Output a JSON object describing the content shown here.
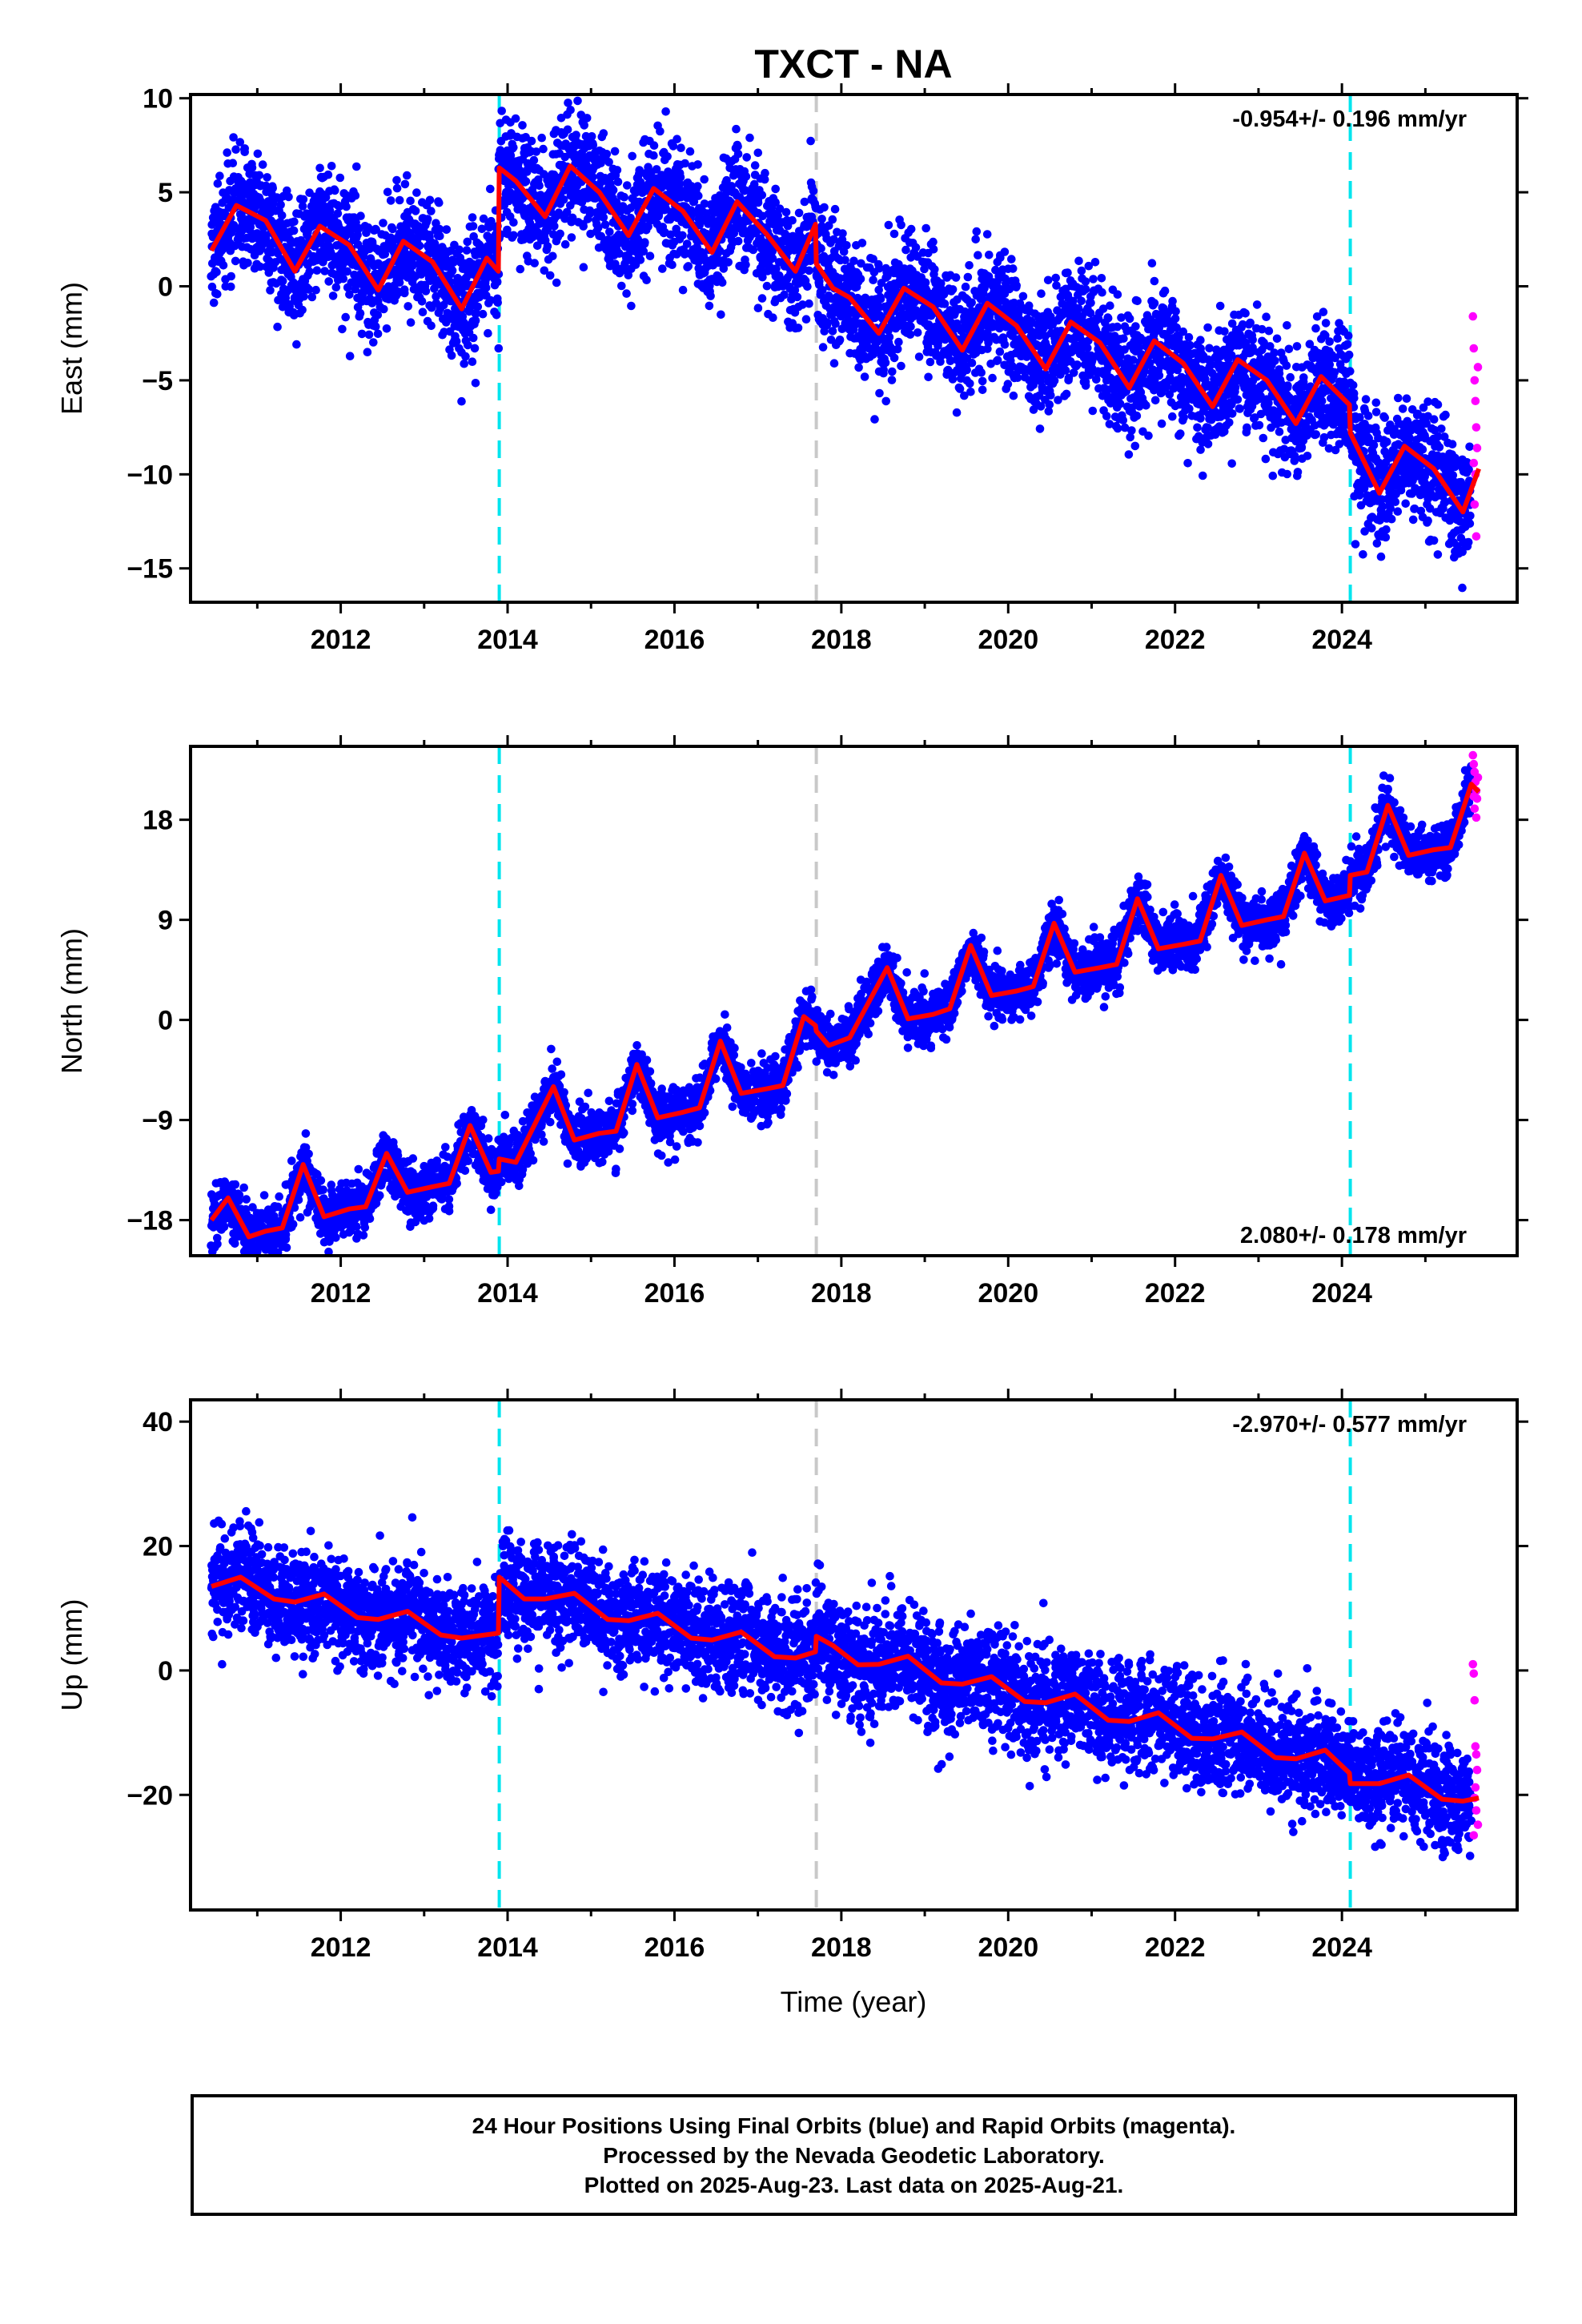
{
  "chart_data": {
    "type": "scatter",
    "title": "TXCT - NA",
    "xlabel": "Time (year)",
    "xlim": [
      2010.2,
      2026.1
    ],
    "x_ticks": [
      2012,
      2014,
      2016,
      2018,
      2020,
      2022,
      2024
    ],
    "data_range": [
      2010.45,
      2025.64
    ],
    "rapid_start": 2025.55,
    "offset_lines": [
      {
        "x": 2013.9,
        "color": "#00e5ee",
        "style": "dashed"
      },
      {
        "x": 2017.7,
        "color": "#c8c8c8",
        "style": "dashed"
      },
      {
        "x": 2024.1,
        "color": "#00e5ee",
        "style": "dashed"
      }
    ],
    "colors": {
      "final": "#0000ff",
      "rapid": "#ff00ff",
      "model": "#ff0000"
    },
    "panels": [
      {
        "name": "East",
        "ylabel": "East (mm)",
        "ylim": [
          -16.8,
          10.2
        ],
        "y_ticks": [
          10,
          5,
          0,
          -5,
          -10,
          -15
        ],
        "rate_label": "-0.954+/- 0.196 mm/yr",
        "rate_position": "top-right",
        "scatter_sd": 1.6,
        "model_points": [
          [
            2010.45,
            1.9
          ],
          [
            2010.75,
            4.3
          ],
          [
            2011.1,
            3.5
          ],
          [
            2011.45,
            0.8
          ],
          [
            2011.75,
            3.2
          ],
          [
            2012.1,
            2.2
          ],
          [
            2012.45,
            -0.2
          ],
          [
            2012.75,
            2.4
          ],
          [
            2013.1,
            1.3
          ],
          [
            2013.45,
            -1.2
          ],
          [
            2013.75,
            1.5
          ],
          [
            2013.89,
            0.8
          ],
          [
            2013.9,
            6.3
          ],
          [
            2014.1,
            5.6
          ],
          [
            2014.45,
            3.7
          ],
          [
            2014.75,
            6.4
          ],
          [
            2015.1,
            5.0
          ],
          [
            2015.45,
            2.7
          ],
          [
            2015.75,
            5.2
          ],
          [
            2016.1,
            4.0
          ],
          [
            2016.45,
            1.8
          ],
          [
            2016.75,
            4.5
          ],
          [
            2017.1,
            2.8
          ],
          [
            2017.45,
            0.8
          ],
          [
            2017.69,
            3.3
          ],
          [
            2017.7,
            1.2
          ],
          [
            2017.9,
            -0.1
          ],
          [
            2018.1,
            -0.6
          ],
          [
            2018.45,
            -2.5
          ],
          [
            2018.75,
            -0.1
          ],
          [
            2019.1,
            -1.1
          ],
          [
            2019.45,
            -3.4
          ],
          [
            2019.75,
            -0.9
          ],
          [
            2020.1,
            -2.1
          ],
          [
            2020.45,
            -4.4
          ],
          [
            2020.75,
            -1.9
          ],
          [
            2021.1,
            -3.0
          ],
          [
            2021.45,
            -5.4
          ],
          [
            2021.75,
            -2.9
          ],
          [
            2022.1,
            -4.1
          ],
          [
            2022.45,
            -6.4
          ],
          [
            2022.75,
            -3.9
          ],
          [
            2023.1,
            -5.0
          ],
          [
            2023.45,
            -7.3
          ],
          [
            2023.75,
            -4.8
          ],
          [
            2024.09,
            -6.3
          ],
          [
            2024.1,
            -7.8
          ],
          [
            2024.45,
            -11.0
          ],
          [
            2024.75,
            -8.5
          ],
          [
            2025.1,
            -9.7
          ],
          [
            2025.45,
            -12.0
          ],
          [
            2025.64,
            -9.7
          ]
        ],
        "rapid_points": [
          [
            2025.57,
            -1.6
          ],
          [
            2025.58,
            -3.3
          ],
          [
            2025.59,
            -5.0
          ],
          [
            2025.6,
            -6.1
          ],
          [
            2025.61,
            -7.5
          ],
          [
            2025.62,
            -8.6
          ],
          [
            2025.6,
            -10.0
          ],
          [
            2025.59,
            -11.6
          ],
          [
            2025.61,
            -13.3
          ],
          [
            2025.63,
            -4.3
          ],
          [
            2025.58,
            -9.4
          ]
        ]
      },
      {
        "name": "North",
        "ylabel": "North (mm)",
        "ylim": [
          -21.2,
          24.6
        ],
        "y_ticks": [
          18,
          9,
          0,
          -9,
          -18
        ],
        "rate_label": "2.080+/- 0.178 mm/yr",
        "rate_position": "bottom-right",
        "scatter_sd": 1.2,
        "model_points": [
          [
            2010.45,
            -18.0
          ],
          [
            2010.65,
            -16.0
          ],
          [
            2010.9,
            -19.5
          ],
          [
            2011.1,
            -19.0
          ],
          [
            2011.3,
            -18.7
          ],
          [
            2011.55,
            -13.0
          ],
          [
            2011.8,
            -17.7
          ],
          [
            2012.1,
            -17.0
          ],
          [
            2012.3,
            -16.8
          ],
          [
            2012.55,
            -12.0
          ],
          [
            2012.8,
            -15.5
          ],
          [
            2013.1,
            -15.0
          ],
          [
            2013.3,
            -14.7
          ],
          [
            2013.55,
            -9.5
          ],
          [
            2013.8,
            -13.7
          ],
          [
            2013.89,
            -13.6
          ],
          [
            2013.9,
            -12.5
          ],
          [
            2014.1,
            -12.8
          ],
          [
            2014.55,
            -6.0
          ],
          [
            2014.8,
            -10.8
          ],
          [
            2015.1,
            -10.2
          ],
          [
            2015.3,
            -10.0
          ],
          [
            2015.55,
            -4.0
          ],
          [
            2015.8,
            -8.8
          ],
          [
            2016.1,
            -8.3
          ],
          [
            2016.3,
            -7.9
          ],
          [
            2016.55,
            -1.9
          ],
          [
            2016.8,
            -6.6
          ],
          [
            2017.1,
            -6.2
          ],
          [
            2017.3,
            -5.9
          ],
          [
            2017.55,
            0.3
          ],
          [
            2017.69,
            -0.5
          ],
          [
            2017.7,
            -1.0
          ],
          [
            2017.85,
            -2.3
          ],
          [
            2018.1,
            -1.6
          ],
          [
            2018.55,
            4.7
          ],
          [
            2018.8,
            0.1
          ],
          [
            2019.1,
            0.5
          ],
          [
            2019.3,
            1.0
          ],
          [
            2019.55,
            6.7
          ],
          [
            2019.8,
            2.2
          ],
          [
            2020.1,
            2.6
          ],
          [
            2020.3,
            3.0
          ],
          [
            2020.55,
            8.7
          ],
          [
            2020.8,
            4.3
          ],
          [
            2021.1,
            4.7
          ],
          [
            2021.3,
            5.0
          ],
          [
            2021.55,
            10.9
          ],
          [
            2021.8,
            6.4
          ],
          [
            2022.1,
            6.8
          ],
          [
            2022.3,
            7.1
          ],
          [
            2022.55,
            13.0
          ],
          [
            2022.8,
            8.5
          ],
          [
            2023.1,
            9.0
          ],
          [
            2023.3,
            9.3
          ],
          [
            2023.55,
            15.0
          ],
          [
            2023.8,
            10.7
          ],
          [
            2024.09,
            11.2
          ],
          [
            2024.1,
            13.0
          ],
          [
            2024.3,
            13.3
          ],
          [
            2024.55,
            19.3
          ],
          [
            2024.8,
            14.8
          ],
          [
            2025.1,
            15.3
          ],
          [
            2025.3,
            15.5
          ],
          [
            2025.55,
            21.2
          ],
          [
            2025.64,
            20.5
          ]
        ],
        "rapid_points": [
          [
            2025.57,
            23.8
          ],
          [
            2025.58,
            23.0
          ],
          [
            2025.59,
            22.3
          ],
          [
            2025.6,
            21.4
          ],
          [
            2025.61,
            20.6
          ],
          [
            2025.62,
            19.9
          ],
          [
            2025.59,
            19.0
          ],
          [
            2025.61,
            18.2
          ],
          [
            2025.63,
            21.8
          ],
          [
            2025.58,
            20.1
          ]
        ]
      },
      {
        "name": "Up",
        "ylabel": "Up (mm)",
        "ylim": [
          -38.5,
          43.5
        ],
        "y_ticks": [
          40,
          20,
          0,
          -20
        ],
        "rate_label": "-2.970+/- 0.577 mm/yr",
        "rate_position": "top-right",
        "scatter_sd": 4.2,
        "model_points": [
          [
            2010.45,
            13.5
          ],
          [
            2010.8,
            15.0
          ],
          [
            2011.2,
            11.5
          ],
          [
            2011.45,
            11.0
          ],
          [
            2011.8,
            12.3
          ],
          [
            2012.2,
            8.5
          ],
          [
            2012.45,
            8.2
          ],
          [
            2012.8,
            9.5
          ],
          [
            2013.2,
            5.7
          ],
          [
            2013.45,
            5.2
          ],
          [
            2013.89,
            6.0
          ],
          [
            2013.9,
            15.0
          ],
          [
            2014.2,
            11.5
          ],
          [
            2014.45,
            11.5
          ],
          [
            2014.8,
            12.4
          ],
          [
            2015.2,
            8.2
          ],
          [
            2015.45,
            8.0
          ],
          [
            2015.8,
            9.2
          ],
          [
            2016.2,
            5.2
          ],
          [
            2016.45,
            4.9
          ],
          [
            2016.8,
            6.2
          ],
          [
            2017.2,
            2.2
          ],
          [
            2017.45,
            2.0
          ],
          [
            2017.69,
            3.0
          ],
          [
            2017.7,
            5.5
          ],
          [
            2017.9,
            4.0
          ],
          [
            2018.2,
            0.9
          ],
          [
            2018.45,
            1.0
          ],
          [
            2018.8,
            2.3
          ],
          [
            2019.2,
            -2.0
          ],
          [
            2019.45,
            -2.2
          ],
          [
            2019.8,
            -1.0
          ],
          [
            2020.2,
            -5.0
          ],
          [
            2020.45,
            -5.2
          ],
          [
            2020.8,
            -3.8
          ],
          [
            2021.2,
            -8.0
          ],
          [
            2021.45,
            -8.2
          ],
          [
            2021.8,
            -6.8
          ],
          [
            2022.2,
            -10.9
          ],
          [
            2022.45,
            -11.0
          ],
          [
            2022.8,
            -9.9
          ],
          [
            2023.2,
            -14.0
          ],
          [
            2023.45,
            -14.2
          ],
          [
            2023.8,
            -12.8
          ],
          [
            2024.09,
            -16.5
          ],
          [
            2024.1,
            -18.2
          ],
          [
            2024.45,
            -18.2
          ],
          [
            2024.8,
            -16.8
          ],
          [
            2025.2,
            -20.7
          ],
          [
            2025.45,
            -21.0
          ],
          [
            2025.64,
            -20.5
          ]
        ],
        "rapid_points": [
          [
            2025.57,
            1.0
          ],
          [
            2025.58,
            -0.5
          ],
          [
            2025.59,
            -4.8
          ],
          [
            2025.6,
            -12.2
          ],
          [
            2025.61,
            -13.5
          ],
          [
            2025.62,
            -16.0
          ],
          [
            2025.6,
            -18.8
          ],
          [
            2025.59,
            -20.5
          ],
          [
            2025.61,
            -22.5
          ],
          [
            2025.63,
            -24.8
          ],
          [
            2025.58,
            -26.5
          ]
        ]
      }
    ]
  },
  "footer": {
    "line1": "24 Hour Positions Using Final Orbits (blue) and Rapid Orbits (magenta).",
    "line2": "Processed by the Nevada Geodetic Laboratory.",
    "line3": "Plotted on 2025-Aug-23. Last data on 2025-Aug-21."
  }
}
